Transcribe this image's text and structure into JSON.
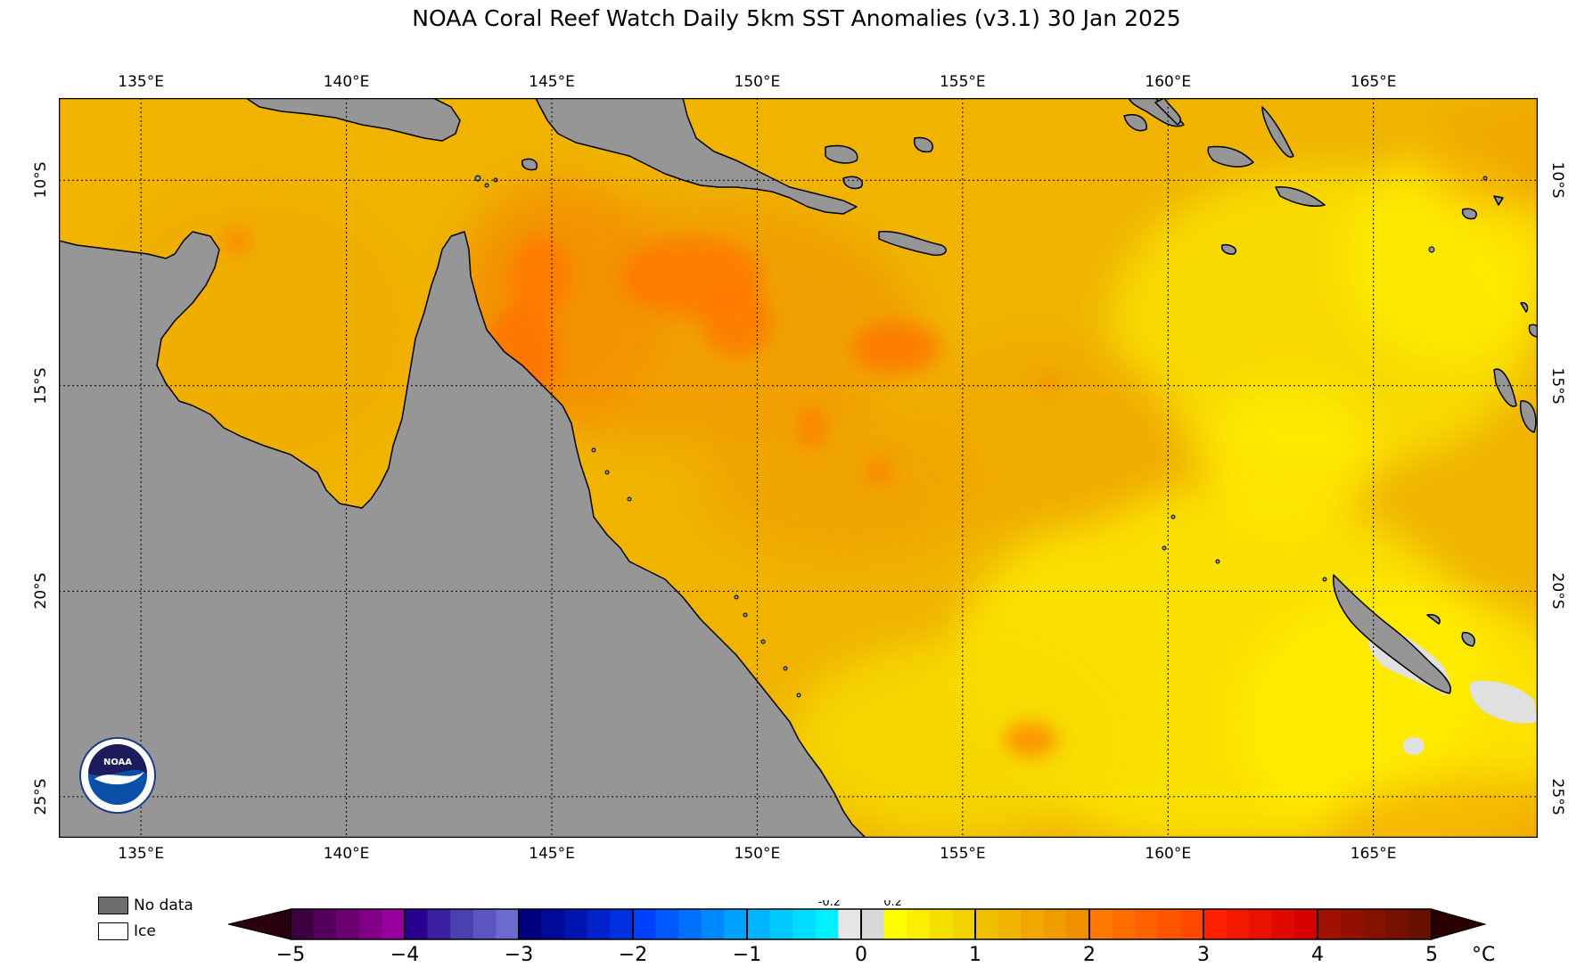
{
  "title": "NOAA Coral Reef Watch Daily 5km SST Anomalies  (v3.1)   30 Jan 2025",
  "map": {
    "lon_range": [
      133.0,
      169.0
    ],
    "lat_range": [
      -26.0,
      -8.0
    ],
    "lon_ticks": [
      {
        "value": 135,
        "label": "135°E"
      },
      {
        "value": 140,
        "label": "140°E"
      },
      {
        "value": 145,
        "label": "145°E"
      },
      {
        "value": 150,
        "label": "150°E"
      },
      {
        "value": 155,
        "label": "155°E"
      },
      {
        "value": 160,
        "label": "160°E"
      },
      {
        "value": 165,
        "label": "165°E"
      }
    ],
    "lat_ticks": [
      {
        "value": -10,
        "label": "10°S"
      },
      {
        "value": -15,
        "label": "15°S"
      },
      {
        "value": -20,
        "label": "20°S"
      },
      {
        "value": -25,
        "label": "25°S"
      }
    ],
    "colors": {
      "land": "#969696",
      "ocean_base": "#f0b400",
      "coast": "#000000"
    }
  },
  "legend": {
    "no_data_label": "No data",
    "ice_label": "Ice",
    "no_data_color": "#6e6e6e",
    "ice_color": "#ffffff"
  },
  "colorbar": {
    "min": -5,
    "max": 5,
    "unit": "°C",
    "tick_labels": [
      "−5",
      "−4",
      "−3",
      "−2",
      "−1",
      "0",
      "1",
      "2",
      "3",
      "4",
      "5"
    ],
    "small_labels": [
      "-0.2",
      "0.2"
    ],
    "low_extend_color": "#2a0010",
    "high_extend_color": "#2a0000",
    "bins": [
      {
        "range": [
          -5,
          -4
        ],
        "colors": [
          "#3f0040",
          "#55005a",
          "#6b0070",
          "#810086",
          "#97009c"
        ]
      },
      {
        "range": [
          -4,
          -3
        ],
        "colors": [
          "#2a0090",
          "#3a20a0",
          "#4a40b0",
          "#5a55c0",
          "#6a6ad0"
        ]
      },
      {
        "range": [
          -3,
          -2
        ],
        "colors": [
          "#000080",
          "#000a98",
          "#0015b0",
          "#0022c8",
          "#0030e0"
        ]
      },
      {
        "range": [
          -2,
          -1
        ],
        "colors": [
          "#0040ff",
          "#0058ff",
          "#0070ff",
          "#0088ff",
          "#00a0ff"
        ]
      },
      {
        "range": [
          -1,
          -0.2
        ],
        "colors": [
          "#00b4ff",
          "#00c8ff",
          "#00dcff",
          "#00f0ff"
        ]
      },
      {
        "range": [
          -0.2,
          0.2
        ],
        "colors": [
          "#e6e6e6",
          "#d8d8d8"
        ]
      },
      {
        "range": [
          0.2,
          1
        ],
        "colors": [
          "#ffff00",
          "#fbee00",
          "#f6e000",
          "#f2d200"
        ]
      },
      {
        "range": [
          1,
          2
        ],
        "colors": [
          "#f0c000",
          "#f0b400",
          "#f0a800",
          "#f09c00",
          "#f09000"
        ]
      },
      {
        "range": [
          2,
          3
        ],
        "colors": [
          "#ff7800",
          "#ff6c00",
          "#ff6000",
          "#ff5400",
          "#ff4800"
        ]
      },
      {
        "range": [
          3,
          4
        ],
        "colors": [
          "#ff2000",
          "#f51800",
          "#eb1000",
          "#e10800",
          "#d70000"
        ]
      },
      {
        "range": [
          4,
          5
        ],
        "colors": [
          "#a01000",
          "#921000",
          "#841000",
          "#761000",
          "#681000"
        ]
      }
    ]
  }
}
